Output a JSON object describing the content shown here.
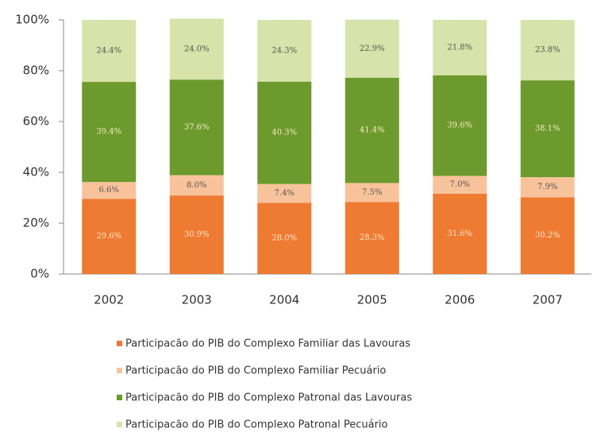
{
  "chart_data": {
    "type": "stacked_bar",
    "categories": [
      "2002",
      "2003",
      "2004",
      "2005",
      "2006",
      "2007"
    ],
    "series": [
      {
        "name": "Participacão do PIB do Complexo Familiar das Lavouras",
        "color": "#ef7a32",
        "values": [
          29.6,
          30.9,
          28.0,
          28.3,
          31.6,
          30.2
        ],
        "value_labels": [
          "29.6%",
          "30.9%",
          "28.0%",
          "28.3%",
          "31.6%",
          "30.2%"
        ]
      },
      {
        "name": "Participacão do PIB do Complexo Familiar Pecuário",
        "color": "#f8c39b",
        "values": [
          6.6,
          8.0,
          7.4,
          7.5,
          7.0,
          7.9
        ],
        "value_labels": [
          "6.6%",
          "8.0%",
          "7.4%",
          "7.5%",
          "7.0%",
          "7.9%"
        ]
      },
      {
        "name": "Participacão do PIB do Complexo Patronal das Lavouras",
        "color": "#6c9a2c",
        "values": [
          39.4,
          37.6,
          40.3,
          41.4,
          39.6,
          38.1
        ],
        "value_labels": [
          "39.4%",
          "37.6%",
          "40.3%",
          "41.4%",
          "39.6%",
          "38.1%"
        ]
      },
      {
        "name": "Participacão do PIB do Complexo Patronal Pecuário",
        "color": "#d7e3aa",
        "values": [
          24.4,
          24.0,
          24.3,
          22.9,
          21.8,
          23.8
        ],
        "value_labels": [
          "24.4%",
          "24.0%",
          "24.3%",
          "22.9%",
          "21.8%",
          "23.8%"
        ]
      }
    ],
    "ylim": [
      0,
      100
    ],
    "yticks": [
      {
        "value": 0,
        "label": "0%"
      },
      {
        "value": 20,
        "label": "20%"
      },
      {
        "value": 40,
        "label": "40%"
      },
      {
        "value": 60,
        "label": "60%"
      },
      {
        "value": 80,
        "label": "80%"
      },
      {
        "value": 100,
        "label": "100%"
      }
    ]
  }
}
